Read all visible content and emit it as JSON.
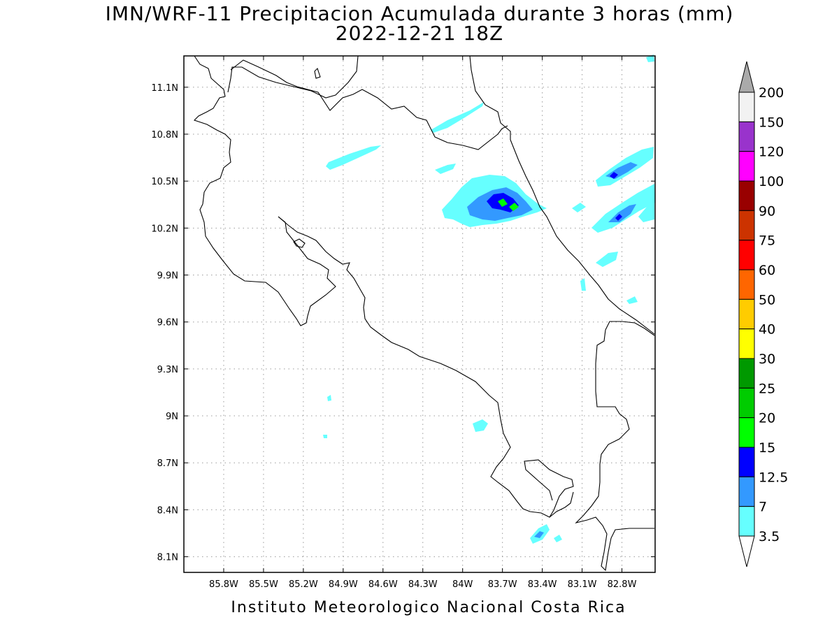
{
  "title": "IMN/WRF-11 Precipitacion Acumulada durante 3 horas (mm)",
  "subtitle": "2022-12-21 18Z",
  "footer": "Instituto Meteorologico Nacional Costa Rica",
  "map": {
    "lon_range": [
      -86.1,
      -82.55
    ],
    "lat_range": [
      8.0,
      11.3
    ],
    "lon_ticks": [
      {
        "value": -85.8,
        "label": "85.8W"
      },
      {
        "value": -85.5,
        "label": "85.5W"
      },
      {
        "value": -85.2,
        "label": "85.2W"
      },
      {
        "value": -84.9,
        "label": "84.9W"
      },
      {
        "value": -84.6,
        "label": "84.6W"
      },
      {
        "value": -84.3,
        "label": "84.3W"
      },
      {
        "value": -84.0,
        "label": "84W"
      },
      {
        "value": -83.7,
        "label": "83.7W"
      },
      {
        "value": -83.4,
        "label": "83.4W"
      },
      {
        "value": -83.1,
        "label": "83.1W"
      },
      {
        "value": -82.8,
        "label": "82.8W"
      }
    ],
    "lat_ticks": [
      {
        "value": 11.1,
        "label": "11.1N"
      },
      {
        "value": 10.8,
        "label": "10.8N"
      },
      {
        "value": 10.5,
        "label": "10.5N"
      },
      {
        "value": 10.2,
        "label": "10.2N"
      },
      {
        "value": 9.9,
        "label": "9.9N"
      },
      {
        "value": 9.6,
        "label": "9.6N"
      },
      {
        "value": 9.3,
        "label": "9.3N"
      },
      {
        "value": 9.0,
        "label": "9N"
      },
      {
        "value": 8.7,
        "label": "8.7N"
      },
      {
        "value": 8.4,
        "label": "8.4N"
      },
      {
        "value": 8.1,
        "label": "8.1N"
      }
    ],
    "grid": true
  },
  "legend": {
    "unit": "mm",
    "levels": [
      "3.5",
      "7",
      "12.5",
      "15",
      "20",
      "25",
      "30",
      "40",
      "50",
      "60",
      "75",
      "90",
      "100",
      "120",
      "150",
      "200"
    ],
    "colors": [
      "#66ffff",
      "#3399ff",
      "#0000ff",
      "#00ff00",
      "#00cc00",
      "#009900",
      "#ffff00",
      "#ffcc00",
      "#ff6600",
      "#ff0000",
      "#cc3300",
      "#990000",
      "#ff00ff",
      "#9933cc",
      "#f2f2f2"
    ],
    "max_color": "#aaaaaa",
    "min_color": "#ffffff"
  }
}
